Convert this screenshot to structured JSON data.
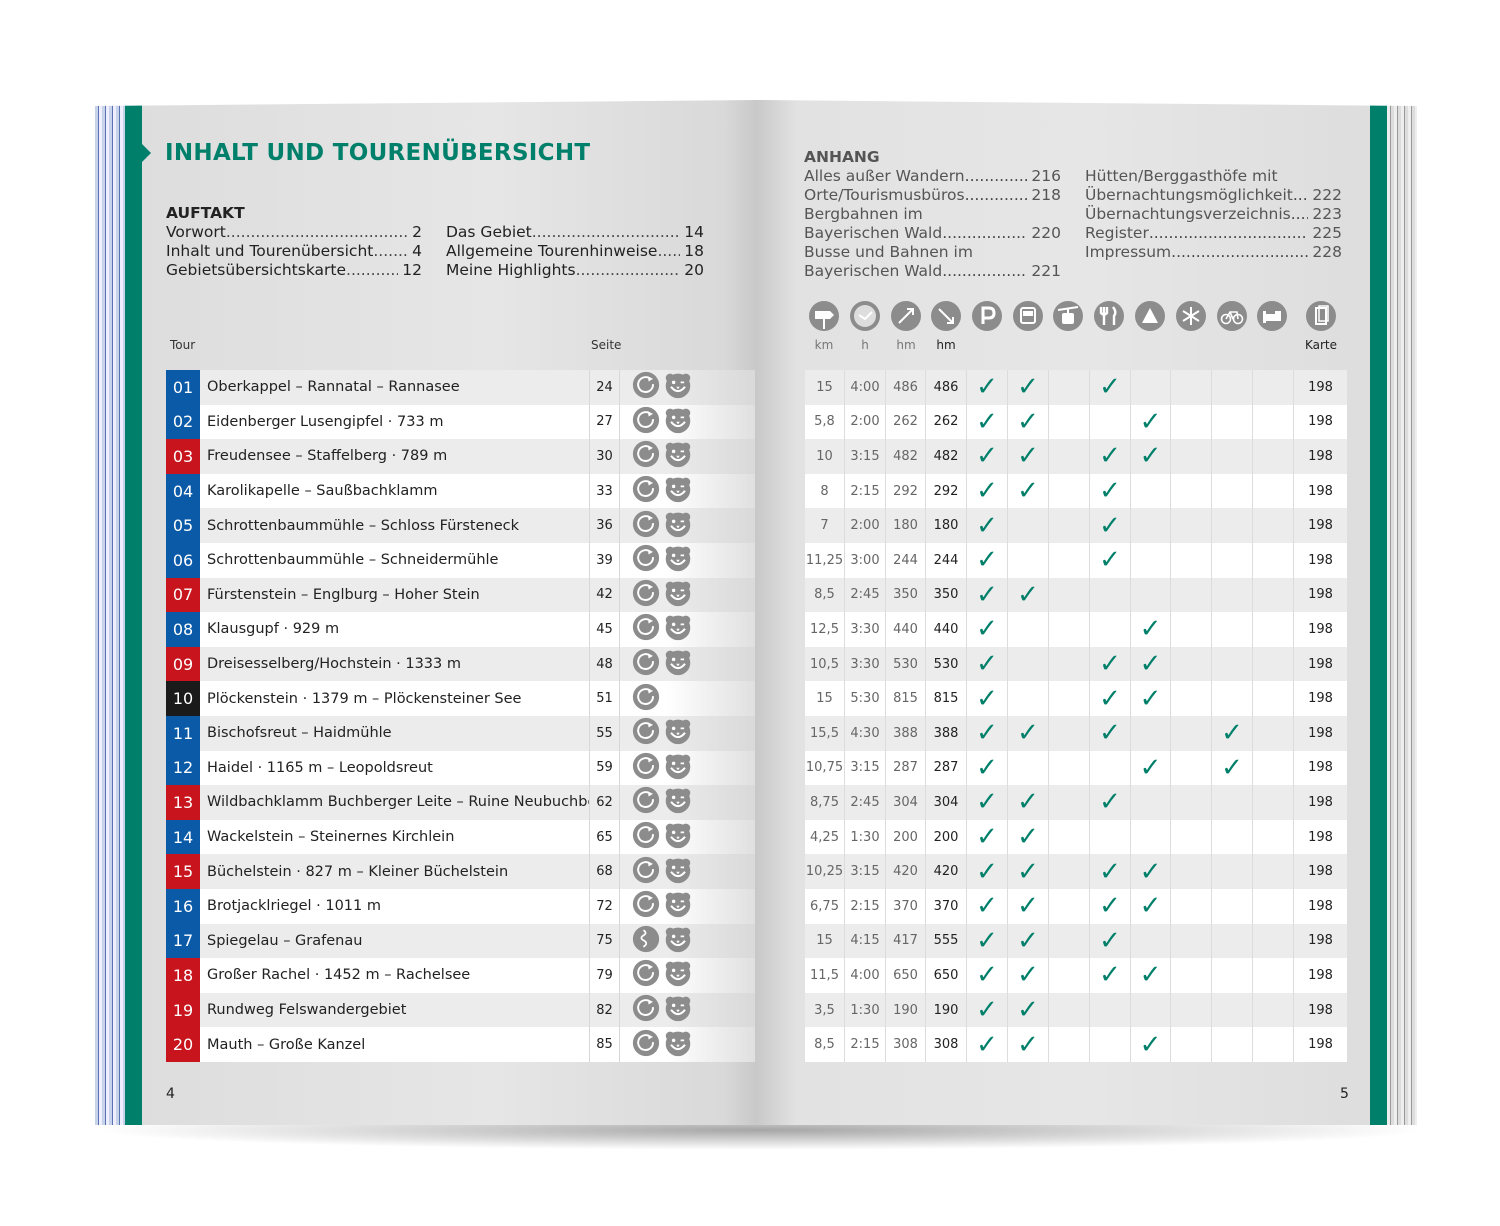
{
  "left": {
    "title": "INHALT UND TOURENÜBERSICHT",
    "auftakt": {
      "heading": "AUFTAKT",
      "entries": [
        {
          "label": "Vorwort",
          "page": "2"
        },
        {
          "label": "Inhalt und Tourenübersicht",
          "page": "4"
        },
        {
          "label": "Gebietsübersichtskarte",
          "page": "12"
        },
        {
          "label": "Das Gebiet",
          "page": "14"
        },
        {
          "label": "Allgemeine Tourenhinweise",
          "page": "18"
        },
        {
          "label": "Meine Highlights",
          "page": "20"
        }
      ]
    },
    "col_tour": "Tour",
    "col_seite": "Seite",
    "page_number": "4"
  },
  "right": {
    "anhang": {
      "heading": "ANHANG",
      "col1": [
        {
          "lines": [
            "Alles außer Wandern"
          ],
          "page": "216"
        },
        {
          "lines": [
            "Orte/Tourismusbüros"
          ],
          "page": "218"
        },
        {
          "lines": [
            "Bergbahnen im",
            "Bayerischen Wald"
          ],
          "page": "220"
        },
        {
          "lines": [
            "Busse und Bahnen im",
            "Bayerischen Wald"
          ],
          "page": "221"
        }
      ],
      "col2": [
        {
          "lines": [
            "Hütten/Berggasthöfe mit",
            "Übernachtungsmöglichkeit"
          ],
          "page": "222"
        },
        {
          "lines": [
            "Übernachtungsverzeichnis"
          ],
          "page": "223"
        },
        {
          "lines": [
            "Register"
          ],
          "page": "225"
        },
        {
          "lines": [
            "Impressum"
          ],
          "page": "228"
        }
      ]
    },
    "header_icons": [
      "signpost-icon",
      "clock-icon",
      "ascent-icon",
      "descent-icon",
      "parking-icon",
      "bus-icon",
      "cable-car-icon",
      "restaurant-icon",
      "hut-icon",
      "snowflake-icon",
      "bicycle-icon",
      "bed-icon",
      "map-icon"
    ],
    "header_labels": {
      "km": "km",
      "h": "h",
      "hm_up": "hm",
      "hm_down": "hm",
      "karte": "Karte"
    },
    "page_number": "5"
  },
  "colors": {
    "teal": "#00806a",
    "blue": "#0a5aa8",
    "red": "#c8141c",
    "black": "#1a1a1a"
  },
  "tours": [
    {
      "num": "01",
      "color": "blue",
      "name": "Oberkappel – Rannatal – Rannasee",
      "seite": "24",
      "type": "round",
      "bear": true,
      "km": "15",
      "h": "4:00",
      "up": "486",
      "down": "486",
      "checks": [
        1,
        1,
        0,
        1,
        0,
        0,
        0,
        0
      ],
      "karte": "198"
    },
    {
      "num": "02",
      "color": "blue",
      "name": "Eidenberger Lusengipfel · 733 m",
      "seite": "27",
      "type": "round",
      "bear": true,
      "km": "5,8",
      "h": "2:00",
      "up": "262",
      "down": "262",
      "checks": [
        1,
        1,
        0,
        0,
        1,
        0,
        0,
        0
      ],
      "karte": "198"
    },
    {
      "num": "03",
      "color": "red",
      "name": "Freudensee – Staffelberg · 789 m",
      "seite": "30",
      "type": "round",
      "bear": true,
      "km": "10",
      "h": "3:15",
      "up": "482",
      "down": "482",
      "checks": [
        1,
        1,
        0,
        1,
        1,
        0,
        0,
        0
      ],
      "karte": "198"
    },
    {
      "num": "04",
      "color": "blue",
      "name": "Karolikapelle – Saußbachklamm",
      "seite": "33",
      "type": "round",
      "bear": true,
      "km": "8",
      "h": "2:15",
      "up": "292",
      "down": "292",
      "checks": [
        1,
        1,
        0,
        1,
        0,
        0,
        0,
        0
      ],
      "karte": "198"
    },
    {
      "num": "05",
      "color": "blue",
      "name": "Schrottenbaummühle – Schloss Fürsteneck",
      "seite": "36",
      "type": "round",
      "bear": true,
      "km": "7",
      "h": "2:00",
      "up": "180",
      "down": "180",
      "checks": [
        1,
        0,
        0,
        1,
        0,
        0,
        0,
        0
      ],
      "karte": "198"
    },
    {
      "num": "06",
      "color": "blue",
      "name": "Schrottenbaummühle – Schneidermühle",
      "seite": "39",
      "type": "round",
      "bear": true,
      "km": "11,25",
      "h": "3:00",
      "up": "244",
      "down": "244",
      "checks": [
        1,
        0,
        0,
        1,
        0,
        0,
        0,
        0
      ],
      "karte": "198"
    },
    {
      "num": "07",
      "color": "red",
      "name": "Fürstenstein – Englburg – Hoher Stein",
      "seite": "42",
      "type": "round",
      "bear": true,
      "km": "8,5",
      "h": "2:45",
      "up": "350",
      "down": "350",
      "checks": [
        1,
        1,
        0,
        0,
        0,
        0,
        0,
        0
      ],
      "karte": "198"
    },
    {
      "num": "08",
      "color": "blue",
      "name": "Klausgupf · 929 m",
      "seite": "45",
      "type": "round",
      "bear": true,
      "km": "12,5",
      "h": "3:30",
      "up": "440",
      "down": "440",
      "checks": [
        1,
        0,
        0,
        0,
        1,
        0,
        0,
        0
      ],
      "karte": "198"
    },
    {
      "num": "09",
      "color": "red",
      "name": "Dreisesselberg/Hochstein · 1333 m",
      "seite": "48",
      "type": "round",
      "bear": true,
      "km": "10,5",
      "h": "3:30",
      "up": "530",
      "down": "530",
      "checks": [
        1,
        0,
        0,
        1,
        1,
        0,
        0,
        0
      ],
      "karte": "198"
    },
    {
      "num": "10",
      "color": "black",
      "name": "Plöckenstein · 1379 m – Plöckensteiner See",
      "seite": "51",
      "type": "round",
      "bear": false,
      "km": "15",
      "h": "5:30",
      "up": "815",
      "down": "815",
      "checks": [
        1,
        0,
        0,
        1,
        1,
        0,
        0,
        0
      ],
      "karte": "198"
    },
    {
      "num": "11",
      "color": "blue",
      "name": "Bischofsreut – Haidmühle",
      "seite": "55",
      "type": "round",
      "bear": true,
      "km": "15,5",
      "h": "4:30",
      "up": "388",
      "down": "388",
      "checks": [
        1,
        1,
        0,
        1,
        0,
        0,
        1,
        0
      ],
      "karte": "198"
    },
    {
      "num": "12",
      "color": "blue",
      "name": "Haidel · 1165 m – Leopoldsreut",
      "seite": "59",
      "type": "round",
      "bear": true,
      "km": "10,75",
      "h": "3:15",
      "up": "287",
      "down": "287",
      "checks": [
        1,
        0,
        0,
        0,
        1,
        0,
        1,
        0
      ],
      "karte": "198"
    },
    {
      "num": "13",
      "color": "red",
      "name": "Wildbachklamm Buchberger Leite – Ruine Neubuchberg",
      "seite": "62",
      "type": "round",
      "bear": true,
      "km": "8,75",
      "h": "2:45",
      "up": "304",
      "down": "304",
      "checks": [
        1,
        1,
        0,
        1,
        0,
        0,
        0,
        0
      ],
      "karte": "198"
    },
    {
      "num": "14",
      "color": "blue",
      "name": "Wackelstein – Steinernes Kirchlein",
      "seite": "65",
      "type": "round",
      "bear": true,
      "km": "4,25",
      "h": "1:30",
      "up": "200",
      "down": "200",
      "checks": [
        1,
        1,
        0,
        0,
        0,
        0,
        0,
        0
      ],
      "karte": "198"
    },
    {
      "num": "15",
      "color": "red",
      "name": "Büchelstein · 827 m – Kleiner Büchelstein",
      "seite": "68",
      "type": "round",
      "bear": true,
      "km": "10,25",
      "h": "3:15",
      "up": "420",
      "down": "420",
      "checks": [
        1,
        1,
        0,
        1,
        1,
        0,
        0,
        0
      ],
      "karte": "198"
    },
    {
      "num": "16",
      "color": "blue",
      "name": "Brotjacklriegel · 1011 m",
      "seite": "72",
      "type": "round",
      "bear": true,
      "km": "6,75",
      "h": "2:15",
      "up": "370",
      "down": "370",
      "checks": [
        1,
        1,
        0,
        1,
        1,
        0,
        0,
        0
      ],
      "karte": "198"
    },
    {
      "num": "17",
      "color": "blue",
      "name": "Spiegelau – Grafenau",
      "seite": "75",
      "type": "linear",
      "bear": true,
      "km": "15",
      "h": "4:15",
      "up": "417",
      "down": "555",
      "checks": [
        1,
        1,
        0,
        1,
        0,
        0,
        0,
        0
      ],
      "karte": "198"
    },
    {
      "num": "18",
      "color": "red",
      "name": "Großer Rachel · 1452 m – Rachelsee",
      "seite": "79",
      "type": "round",
      "bear": true,
      "km": "11,5",
      "h": "4:00",
      "up": "650",
      "down": "650",
      "checks": [
        1,
        1,
        0,
        1,
        1,
        0,
        0,
        0
      ],
      "karte": "198"
    },
    {
      "num": "19",
      "color": "red",
      "name": "Rundweg Felswandergebiet",
      "seite": "82",
      "type": "round",
      "bear": true,
      "km": "3,5",
      "h": "1:30",
      "up": "190",
      "down": "190",
      "checks": [
        1,
        1,
        0,
        0,
        0,
        0,
        0,
        0
      ],
      "karte": "198"
    },
    {
      "num": "20",
      "color": "red",
      "name": "Mauth – Große Kanzel",
      "seite": "85",
      "type": "round",
      "bear": true,
      "km": "8,5",
      "h": "2:15",
      "up": "308",
      "down": "308",
      "checks": [
        1,
        1,
        0,
        0,
        1,
        0,
        0,
        0
      ],
      "karte": "198"
    }
  ]
}
